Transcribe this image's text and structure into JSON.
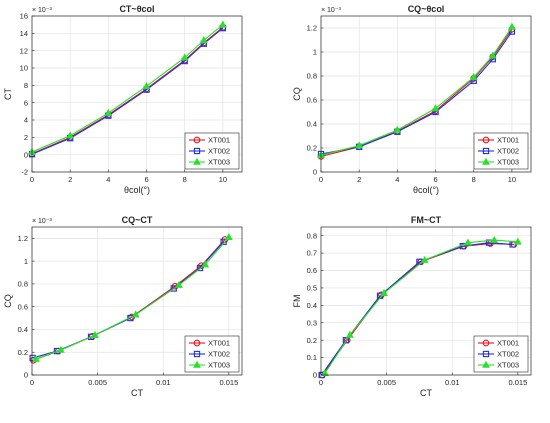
{
  "colors": {
    "XT001": "#e8141e",
    "XT002": "#1f2fe0",
    "XT003": "#29e029"
  },
  "markers": {
    "XT001": "circle",
    "XT002": "square",
    "XT003": "triangle"
  },
  "chart_data": [
    {
      "type": "line",
      "title": "CT~θcol",
      "xlabel": "θcol(°)",
      "ylabel": "CT",
      "exponent": "× 10⁻³",
      "xlim": [
        0,
        11
      ],
      "ylim": [
        -2,
        16
      ],
      "xticks": [
        "0",
        "2",
        "4",
        "6",
        "8",
        "10"
      ],
      "yticks": [
        "-2",
        "0",
        "2",
        "4",
        "6",
        "8",
        "10",
        "12",
        "14",
        "16"
      ],
      "xticks_v": [
        0,
        2,
        4,
        6,
        8,
        10
      ],
      "yticks_v": [
        -2,
        0,
        2,
        4,
        6,
        8,
        10,
        12,
        14,
        16
      ],
      "grid": true,
      "legend": "bottom-right",
      "series": [
        {
          "name": "XT001",
          "x": [
            0,
            2,
            4,
            6,
            8,
            9,
            10
          ],
          "y": [
            0.1,
            2.0,
            4.6,
            7.6,
            10.9,
            12.9,
            14.7
          ]
        },
        {
          "name": "XT002",
          "x": [
            0,
            2,
            4,
            6,
            8,
            9,
            10
          ],
          "y": [
            0.05,
            1.9,
            4.5,
            7.5,
            10.8,
            12.8,
            14.6
          ]
        },
        {
          "name": "XT003",
          "x": [
            0,
            2,
            4,
            6,
            8,
            9,
            10
          ],
          "y": [
            0.3,
            2.2,
            4.8,
            7.9,
            11.2,
            13.2,
            15.0
          ]
        }
      ]
    },
    {
      "type": "line",
      "title": "CQ~θcol",
      "xlabel": "θcol(°)",
      "ylabel": "CQ",
      "exponent": "× 10⁻³",
      "xlim": [
        0,
        11
      ],
      "ylim": [
        0,
        1.3
      ],
      "xticks": [
        "0",
        "2",
        "4",
        "6",
        "8",
        "10"
      ],
      "yticks": [
        "0",
        "0.2",
        "0.4",
        "0.6",
        "0.8",
        "1",
        "1.2"
      ],
      "xticks_v": [
        0,
        2,
        4,
        6,
        8,
        10
      ],
      "yticks_v": [
        0,
        0.2,
        0.4,
        0.6,
        0.8,
        1.0,
        1.2
      ],
      "grid": true,
      "legend": "bottom-right",
      "series": [
        {
          "name": "XT001",
          "x": [
            0,
            2,
            4,
            6,
            8,
            9,
            10
          ],
          "y": [
            0.13,
            0.21,
            0.34,
            0.51,
            0.78,
            0.96,
            1.19
          ]
        },
        {
          "name": "XT002",
          "x": [
            0,
            2,
            4,
            6,
            8,
            9,
            10
          ],
          "y": [
            0.15,
            0.21,
            0.335,
            0.5,
            0.76,
            0.94,
            1.17
          ]
        },
        {
          "name": "XT003",
          "x": [
            0,
            2,
            4,
            6,
            8,
            9,
            10
          ],
          "y": [
            0.14,
            0.22,
            0.35,
            0.53,
            0.79,
            0.97,
            1.21
          ]
        }
      ]
    },
    {
      "type": "line",
      "title": "CQ~CT",
      "xlabel": "CT",
      "ylabel": "CQ",
      "exponent": "× 10⁻³",
      "xlim": [
        0,
        0.016
      ],
      "ylim": [
        0,
        1.3
      ],
      "xticks": [
        "0",
        "0.005",
        "0.01",
        "0.015"
      ],
      "yticks": [
        "0",
        "0.2",
        "0.4",
        "0.6",
        "0.8",
        "1",
        "1.2"
      ],
      "xticks_v": [
        0,
        0.005,
        0.01,
        0.015
      ],
      "yticks_v": [
        0,
        0.2,
        0.4,
        0.6,
        0.8,
        1.0,
        1.2
      ],
      "grid": true,
      "legend": "bottom-right",
      "series": [
        {
          "name": "XT001",
          "x": [
            0.0001,
            0.002,
            0.0046,
            0.0076,
            0.0109,
            0.0129,
            0.0147
          ],
          "y": [
            0.13,
            0.21,
            0.34,
            0.51,
            0.78,
            0.96,
            1.19
          ]
        },
        {
          "name": "XT002",
          "x": [
            5e-05,
            0.0019,
            0.0045,
            0.0075,
            0.0108,
            0.0128,
            0.0146
          ],
          "y": [
            0.15,
            0.21,
            0.335,
            0.5,
            0.76,
            0.94,
            1.17
          ]
        },
        {
          "name": "XT003",
          "x": [
            0.0003,
            0.0022,
            0.0048,
            0.0079,
            0.0112,
            0.0132,
            0.015
          ],
          "y": [
            0.14,
            0.22,
            0.35,
            0.53,
            0.79,
            0.97,
            1.21
          ]
        }
      ]
    },
    {
      "type": "line",
      "title": "FM~CT",
      "xlabel": "CT",
      "ylabel": "FM",
      "exponent": "",
      "xlim": [
        0,
        0.016
      ],
      "ylim": [
        0,
        0.85
      ],
      "xticks": [
        "0",
        "0.005",
        "0.01",
        "0.015"
      ],
      "yticks": [
        "0",
        "0.1",
        "0.2",
        "0.3",
        "0.4",
        "0.5",
        "0.6",
        "0.7",
        "0.8"
      ],
      "xticks_v": [
        0,
        0.005,
        0.01,
        0.015
      ],
      "yticks_v": [
        0,
        0.1,
        0.2,
        0.3,
        0.4,
        0.5,
        0.6,
        0.7,
        0.8
      ],
      "grid": true,
      "legend": "bottom-right",
      "series": [
        {
          "name": "XT001",
          "x": [
            0.0001,
            0.002,
            0.0046,
            0.0076,
            0.0109,
            0.0129,
            0.0147
          ],
          "y": [
            0.0,
            0.2,
            0.46,
            0.65,
            0.74,
            0.755,
            0.75
          ]
        },
        {
          "name": "XT002",
          "x": [
            5e-05,
            0.0019,
            0.0045,
            0.0075,
            0.0108,
            0.0128,
            0.0146
          ],
          "y": [
            0.0,
            0.2,
            0.455,
            0.65,
            0.74,
            0.76,
            0.75
          ]
        },
        {
          "name": "XT003",
          "x": [
            0.0003,
            0.0022,
            0.0048,
            0.0079,
            0.0112,
            0.0132,
            0.015
          ],
          "y": [
            0.01,
            0.23,
            0.47,
            0.66,
            0.76,
            0.775,
            0.765
          ]
        }
      ]
    }
  ]
}
